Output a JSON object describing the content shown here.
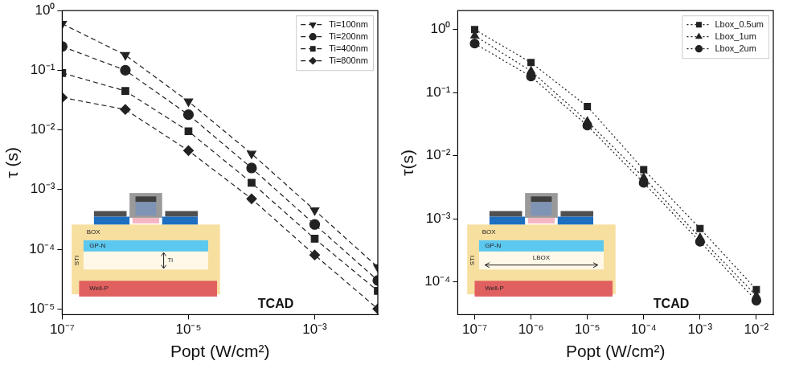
{
  "chart_data": [
    {
      "type": "line",
      "x_label": "Popt (W/cm²)",
      "y_label": "τ (s)",
      "log": true,
      "grid": false,
      "legend": "upper right",
      "x": [
        1e-07,
        1e-06,
        1e-05,
        0.0001,
        0.001,
        0.01
      ],
      "xlim": [
        1e-07,
        0.01
      ],
      "xticks": [
        {
          "value": 1e-07,
          "label": "10⁻⁷"
        },
        {
          "value": 1e-05,
          "label": "10⁻⁵"
        },
        {
          "value": 0.001,
          "label": "10⁻³"
        }
      ],
      "ylim": [
        8e-06,
        1
      ],
      "yticks": [
        {
          "value": 1e-05,
          "label": "10⁻⁵"
        },
        {
          "value": 0.0001,
          "label": "10⁻⁴"
        },
        {
          "value": 0.001,
          "label": "10⁻³"
        },
        {
          "value": 0.01,
          "label": "10⁻²"
        },
        {
          "value": 0.1,
          "label": "10⁻¹"
        },
        {
          "value": 1,
          "label": "10⁰"
        }
      ],
      "series": [
        {
          "name": "Ti=100nm",
          "color": "#222222",
          "marker": "triangle-down",
          "line_style": "dashed",
          "values": [
            0.6,
            0.18,
            0.03,
            0.004,
            0.00045,
            5e-05
          ]
        },
        {
          "name": "Ti=200nm",
          "color": "#222222",
          "marker": "circle",
          "line_style": "dashed",
          "values": [
            0.25,
            0.1,
            0.018,
            0.0023,
            0.00026,
            3e-05
          ]
        },
        {
          "name": "Ti=400nm",
          "color": "#222222",
          "marker": "square",
          "line_style": "dashed",
          "values": [
            0.09,
            0.045,
            0.0095,
            0.0013,
            0.00015,
            2e-05
          ]
        },
        {
          "name": "Ti=800nm",
          "color": "#222222",
          "marker": "diamond",
          "line_style": "dashed",
          "values": [
            0.035,
            0.022,
            0.0045,
            0.0007,
            8e-05,
            1e-05
          ]
        }
      ],
      "annotations": [
        "TCAD"
      ],
      "inset_labels": {
        "box": "BOX",
        "gp": "GP-N",
        "dimension": "Ti",
        "sti": "STI",
        "well": "Well-P"
      }
    },
    {
      "type": "line",
      "x_label": "Popt (W/cm²)",
      "y_label": "τ(s)",
      "log": true,
      "grid": false,
      "legend": "upper right",
      "x": [
        1e-07,
        1e-06,
        1e-05,
        0.0001,
        0.001,
        0.01
      ],
      "xlim": [
        5e-08,
        0.02
      ],
      "xticks": [
        {
          "value": 1e-07,
          "label": "10⁻⁷"
        },
        {
          "value": 1e-06,
          "label": "10⁻⁶"
        },
        {
          "value": 1e-05,
          "label": "10⁻⁵"
        },
        {
          "value": 0.0001,
          "label": "10⁻⁴"
        },
        {
          "value": 0.001,
          "label": "10⁻³"
        },
        {
          "value": 0.01,
          "label": "10⁻²"
        }
      ],
      "ylim": [
        3e-05,
        2
      ],
      "yticks": [
        {
          "value": 0.0001,
          "label": "10⁻⁴"
        },
        {
          "value": 0.001,
          "label": "10⁻³"
        },
        {
          "value": 0.01,
          "label": "10⁻²"
        },
        {
          "value": 0.1,
          "label": "10⁻¹"
        },
        {
          "value": 1,
          "label": "10⁰"
        }
      ],
      "series": [
        {
          "name": "Lbox_0.5um",
          "color": "#222222",
          "marker": "square",
          "line_style": "dotted",
          "values": [
            1.0,
            0.3,
            0.06,
            0.006,
            0.0007,
            7.5e-05
          ]
        },
        {
          "name": "Lbox_1um",
          "color": "#222222",
          "marker": "triangle",
          "line_style": "dotted",
          "values": [
            0.8,
            0.22,
            0.035,
            0.0045,
            0.0005,
            6e-05
          ]
        },
        {
          "name": "Lbox_2um",
          "color": "#222222",
          "marker": "circle",
          "line_style": "dotted",
          "values": [
            0.6,
            0.18,
            0.03,
            0.0037,
            0.00043,
            5e-05
          ]
        }
      ],
      "annotations": [
        "TCAD"
      ],
      "inset_labels": {
        "box": "BOX",
        "gp": "GP-N",
        "dimension": "LBOX",
        "sti": "STI",
        "well": "Well-P"
      }
    }
  ]
}
